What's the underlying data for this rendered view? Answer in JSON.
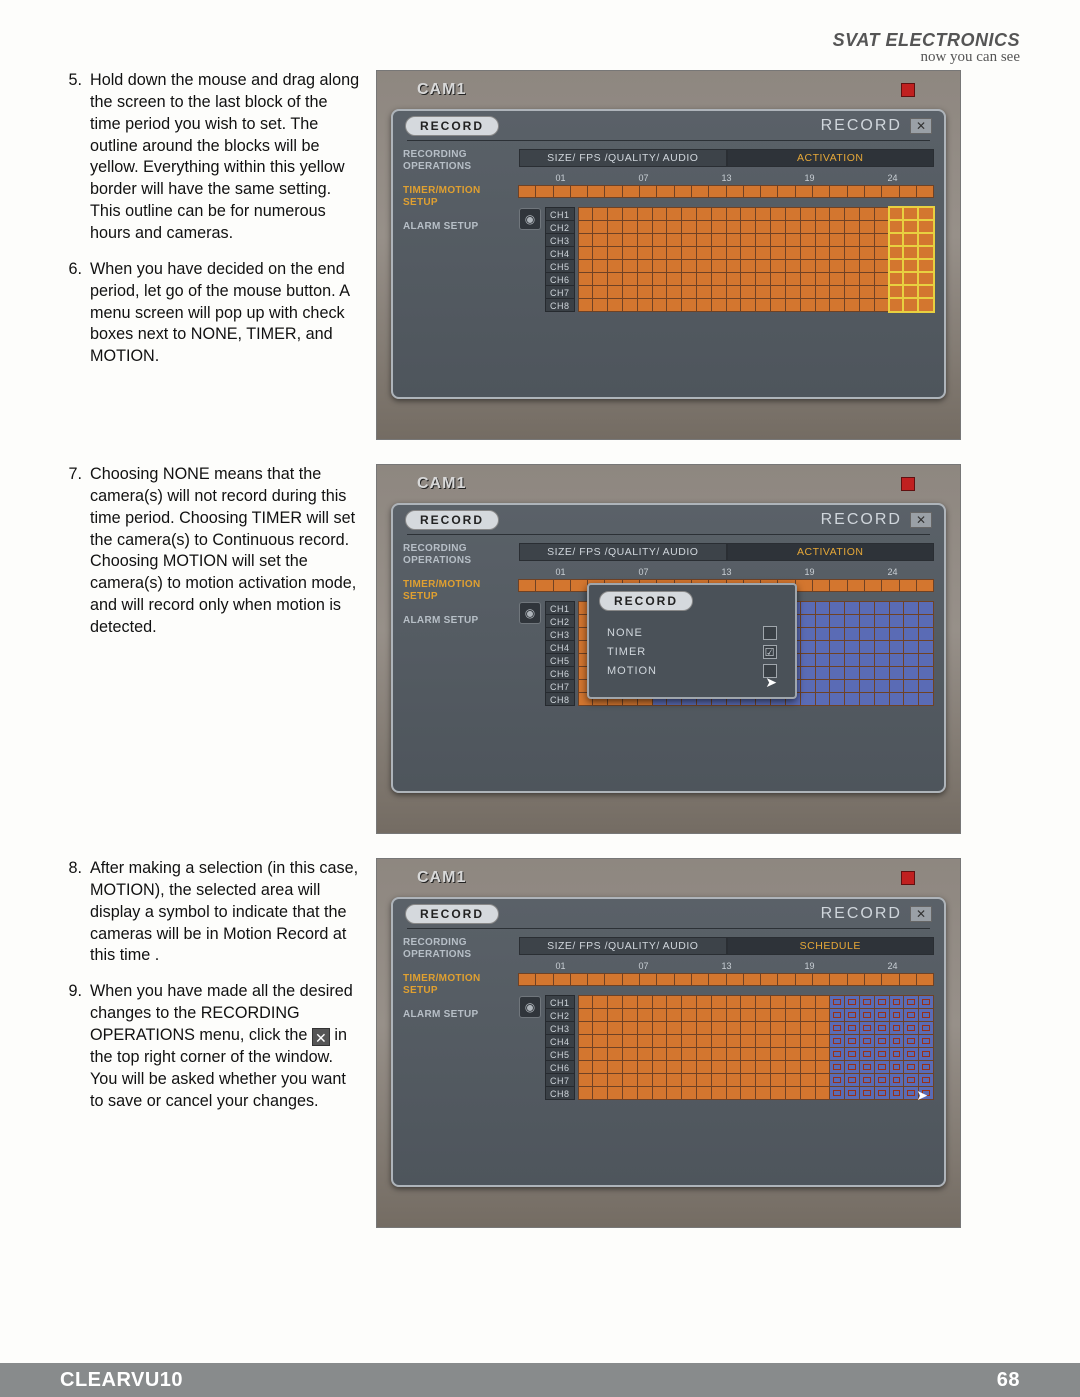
{
  "header": {
    "brand": "SVAT ELECTRONICS",
    "tagline": "now you can see"
  },
  "footer": {
    "model": "CLEARVU10",
    "page": "68"
  },
  "steps": {
    "s5": {
      "n": "5.",
      "t": "Hold down the mouse and drag along the screen to the last block of the time period you wish to set.  The outline around the blocks will be yellow.  Everything within this yellow border will have the same setting. This outline can be for numerous hours and cameras."
    },
    "s6": {
      "n": "6.",
      "t": "When you have decided on the end period, let go of the mouse button. A menu screen will pop up with check boxes next to NONE, TIMER, and MOTION."
    },
    "s7": {
      "n": "7.",
      "t": "Choosing NONE means that the camera(s) will not record during this time period. Choosing TIMER will set the camera(s) to Continuous record.  Choosing MOTION will set the camera(s) to motion activation mode, and will record only when motion is detected."
    },
    "s8": {
      "n": "8.",
      "t": "After making a selection (in this case, MOTION), the selected area will display a symbol to indicate that the cameras will be in Motion Record at this time ."
    },
    "s9a": {
      "n": "9.",
      "t": "When you have made all the desired changes to the RECORDING OPERATIONS menu, click the "
    },
    "s9b": {
      "t": " in the top right corner of the window.  You will be asked whether you want to save or cancel your changes."
    }
  },
  "dvr": {
    "cam": "CAM1",
    "pill": "RECORD",
    "status": "RECORD",
    "close": "✕",
    "tabs": {
      "a": "SIZE/ FPS /QUALITY/ AUDIO",
      "b": "ACTIVATION",
      "c": "SCHEDULE"
    },
    "side": {
      "a": "RECORDING OPERATIONS",
      "b": "TIMER/MOTION SETUP",
      "c": "ALARM SETUP"
    },
    "hours": [
      "01",
      "07",
      "13",
      "19",
      "24"
    ],
    "channels": [
      "CH1",
      "CH2",
      "CH3",
      "CH4",
      "CH5",
      "CH6",
      "CH7",
      "CH8"
    ],
    "popup": {
      "title": "RECORD",
      "o1": "NONE",
      "o2": "TIMER",
      "o3": "MOTION",
      "chk": "☑"
    },
    "cols": 24,
    "sel1": {
      "startCol": 21,
      "endCol": 23,
      "startRow": 0,
      "endRow": 7
    },
    "sel2": {
      "startCol": 5,
      "endCol": 17
    },
    "blue3": {
      "startCol": 17,
      "endCol": 23
    }
  }
}
